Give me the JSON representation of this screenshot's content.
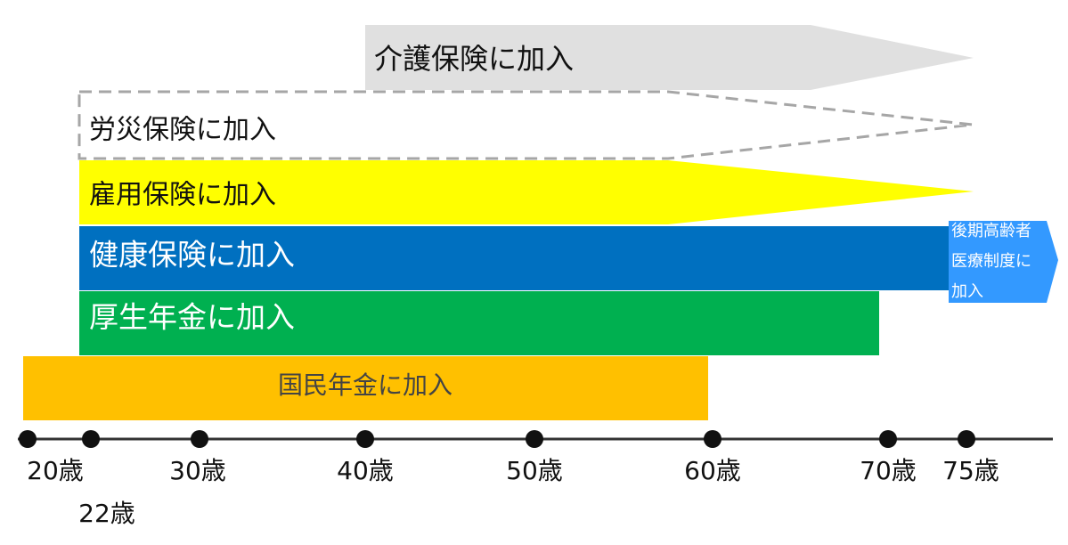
{
  "bars": [
    {
      "label": "介護保険に加入"
    },
    {
      "label": "労災保険に加入"
    },
    {
      "label": "雇用保険に加入"
    },
    {
      "label": "健康保険に加入"
    },
    {
      "label": "厚生年金に加入"
    },
    {
      "label": "国民年金に加入"
    }
  ],
  "late_elderly": {
    "lines": [
      "後期高齢者",
      "医療制度に",
      "加入"
    ]
  },
  "axis": {
    "labels": [
      "20歳",
      "22歳",
      "30歳",
      "40歳",
      "50歳",
      "60歳",
      "70歳",
      "75歳"
    ]
  }
}
